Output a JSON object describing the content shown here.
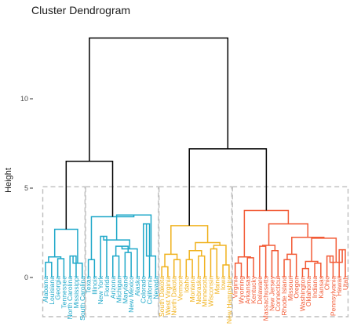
{
  "chart_data": {
    "type": "dendrogram",
    "title": "Cluster Dendrogram",
    "ylabel": "Height",
    "ylim": [
      -2.2,
      14.2
    ],
    "yticks": [
      0,
      5,
      10
    ],
    "colors": {
      "root": "#000000",
      "clusters": [
        "#1fa8c9",
        "#1fa8c9",
        "#f0b21e",
        "#f25a35"
      ],
      "box": "#bdbdbd"
    },
    "clusters": [
      {
        "height": 4.9,
        "leaves": [
          "Alabama",
          "Louisiana",
          "Georgia",
          "Tennessee",
          "North Carolina",
          "Mississippi",
          "South Carolina"
        ]
      },
      {
        "height": 4.9,
        "leaves": [
          "Texas",
          "Illinois",
          "New York",
          "Florida",
          "Arizona",
          "Michigan",
          "Maryland",
          "New Mexico",
          "Alaska",
          "Colorado",
          "California",
          "Nevada"
        ]
      },
      {
        "height": 4.9,
        "leaves": [
          "South Dakota",
          "West Virginia",
          "North Dakota",
          "Vermont",
          "Idaho",
          "Montana",
          "Nebraska",
          "Minnesota",
          "Wisconsin",
          "Maine",
          "Iowa",
          "New Hampshire"
        ]
      },
      {
        "height": 4.9,
        "leaves": [
          "Virginia",
          "Wyoming",
          "Arkansas",
          "Kentucky",
          "Delaware",
          "Massachusetts",
          "New Jersey",
          "Connecticut",
          "Rhode Island",
          "Missouri",
          "Oregon",
          "Washington",
          "Oklahoma",
          "Indiana",
          "Kansas",
          "Ohio",
          "Pennsylvania",
          "Hawaii",
          "Utah"
        ]
      }
    ],
    "merges": [
      {
        "id": "A1",
        "children": [
          "Alabama",
          "Louisiana"
        ],
        "height": 0.85
      },
      {
        "id": "A2",
        "children": [
          "Georgia",
          "Tennessee"
        ],
        "height": 1.05
      },
      {
        "id": "A3",
        "children": [
          "A1",
          "A2"
        ],
        "height": 1.15
      },
      {
        "id": "A4",
        "children": [
          "North Carolina",
          "Mississippi"
        ],
        "height": 1.2
      },
      {
        "id": "A5",
        "children": [
          "A4",
          "South Carolina"
        ],
        "height": 0.8
      },
      {
        "id": "A6",
        "children": [
          "A3",
          "A5"
        ],
        "height": 2.7
      },
      {
        "id": "B1",
        "children": [
          "Texas",
          "Illinois"
        ],
        "height": 1.0
      },
      {
        "id": "B2",
        "children": [
          "New York",
          "Florida"
        ],
        "height": 2.3
      },
      {
        "id": "B3",
        "children": [
          "Arizona",
          "Michigan"
        ],
        "height": 1.2
      },
      {
        "id": "B4",
        "children": [
          "Maryland",
          "New Mexico"
        ],
        "height": 1.4
      },
      {
        "id": "B5",
        "children": [
          "B3",
          "B4"
        ],
        "height": 1.75
      },
      {
        "id": "B6",
        "children": [
          "B5",
          "Alaska"
        ],
        "height": 1.6
      },
      {
        "id": "B7",
        "children": [
          "Colorado",
          "California"
        ],
        "height": 3.0
      },
      {
        "id": "B8",
        "children": [
          "B7",
          "Nevada"
        ],
        "height": 1.2
      },
      {
        "id": "B9",
        "children": [
          "B2",
          "B6"
        ],
        "height": 2.1
      },
      {
        "id": "B10",
        "children": [
          "B9",
          "B8"
        ],
        "height": 3.5
      },
      {
        "id": "B11",
        "children": [
          "B1",
          "B10"
        ],
        "height": 3.4
      },
      {
        "id": "C1",
        "children": [
          "South Dakota",
          "West Virginia"
        ],
        "height": 0.6
      },
      {
        "id": "C2",
        "children": [
          "North Dakota",
          "Vermont"
        ],
        "height": 1.0
      },
      {
        "id": "C3",
        "children": [
          "C1",
          "C2"
        ],
        "height": 1.3
      },
      {
        "id": "C4",
        "children": [
          "Idaho",
          "Montana"
        ],
        "height": 1.0
      },
      {
        "id": "C5",
        "children": [
          "Nebraska",
          "Minnesota"
        ],
        "height": 1.2
      },
      {
        "id": "C6",
        "children": [
          "C4",
          "C5"
        ],
        "height": 1.5
      },
      {
        "id": "C7",
        "children": [
          "Wisconsin",
          "Maine"
        ],
        "height": 1.6
      },
      {
        "id": "C8",
        "children": [
          "Iowa",
          "New Hampshire"
        ],
        "height": 0.7
      },
      {
        "id": "C9",
        "children": [
          "C7",
          "C8"
        ],
        "height": 1.8
      },
      {
        "id": "C10",
        "children": [
          "C6",
          "C9"
        ],
        "height": 1.95
      },
      {
        "id": "C11",
        "children": [
          "C3",
          "C10"
        ],
        "height": 2.9
      },
      {
        "id": "D1",
        "children": [
          "Virginia",
          "Wyoming"
        ],
        "height": 0.8
      },
      {
        "id": "D2",
        "children": [
          "Arkansas",
          "Kentucky"
        ],
        "height": 1.1
      },
      {
        "id": "D3",
        "children": [
          "D1",
          "D2"
        ],
        "height": 1.15
      },
      {
        "id": "D4",
        "children": [
          "Delaware",
          "Massachusetts"
        ],
        "height": 1.75
      },
      {
        "id": "D5",
        "children": [
          "New Jersey",
          "Connecticut"
        ],
        "height": 1.5
      },
      {
        "id": "D6",
        "children": [
          "D4",
          "D5"
        ],
        "height": 1.8
      },
      {
        "id": "D7",
        "children": [
          "Rhode Island",
          "Missouri"
        ],
        "height": 1.0
      },
      {
        "id": "D8",
        "children": [
          "D7",
          "Oregon"
        ],
        "height": 1.3
      },
      {
        "id": "D9",
        "children": [
          "Washington",
          "Oklahoma"
        ],
        "height": 0.5
      },
      {
        "id": "D10",
        "children": [
          "Indiana",
          "Kansas"
        ],
        "height": 0.8
      },
      {
        "id": "D11",
        "children": [
          "D9",
          "D10"
        ],
        "height": 0.9
      },
      {
        "id": "D12",
        "children": [
          "Ohio",
          "Pennsylvania"
        ],
        "height": 1.2
      },
      {
        "id": "D13",
        "children": [
          "Hawaii",
          "Utah"
        ],
        "height": 1.55
      },
      {
        "id": "D14",
        "children": [
          "D12",
          "D13"
        ],
        "height": 0.85
      },
      {
        "id": "D15",
        "children": [
          "D11",
          "D14"
        ],
        "height": 2.2
      },
      {
        "id": "D16",
        "children": [
          "D8",
          "D15"
        ],
        "height": 2.25
      },
      {
        "id": "D17",
        "children": [
          "D6",
          "D16"
        ],
        "height": 3.0
      },
      {
        "id": "D18",
        "children": [
          "D3",
          "D17"
        ],
        "height": 3.75
      },
      {
        "id": "L",
        "children": [
          "A6",
          "B11"
        ],
        "height": 6.5
      },
      {
        "id": "R",
        "children": [
          "C11",
          "D18"
        ],
        "height": 7.2
      },
      {
        "id": "Root",
        "children": [
          "L",
          "R"
        ],
        "height": 13.4
      }
    ]
  }
}
